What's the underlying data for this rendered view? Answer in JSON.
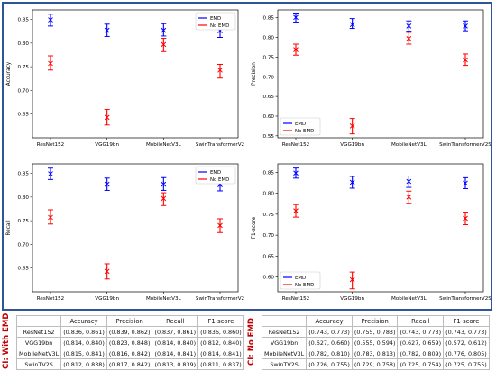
{
  "chart_data": [
    {
      "type": "scatter",
      "ylabel": "Accuracy",
      "categories": [
        "ResNet152",
        "VGG19bn",
        "MobileNetV3L",
        "SwinTransformerV2"
      ],
      "ylim": [
        0.6,
        0.87
      ],
      "yticks": [
        0.65,
        0.7,
        0.75,
        0.8,
        0.85
      ],
      "legend": "top-right",
      "series": [
        {
          "name": "EMD",
          "color": "#0000ff",
          "values": [
            0.849,
            0.827,
            0.827,
            0.826
          ],
          "lower": [
            0.836,
            0.814,
            0.815,
            0.812
          ],
          "upper": [
            0.861,
            0.84,
            0.841,
            0.838
          ]
        },
        {
          "name": "No EMD",
          "color": "#ff0000",
          "values": [
            0.757,
            0.643,
            0.797,
            0.743
          ],
          "lower": [
            0.743,
            0.627,
            0.782,
            0.726
          ],
          "upper": [
            0.773,
            0.66,
            0.81,
            0.755
          ]
        }
      ]
    },
    {
      "type": "scatter",
      "ylabel": "Precision",
      "categories": [
        "ResNet152",
        "VGG19bn",
        "MobileNetV3L",
        "SwinTransformerV2S"
      ],
      "ylim": [
        0.545,
        0.87
      ],
      "yticks": [
        0.55,
        0.6,
        0.65,
        0.7,
        0.75,
        0.8,
        0.85
      ],
      "legend": "bottom-left",
      "series": [
        {
          "name": "EMD",
          "color": "#0000ff",
          "values": [
            0.851,
            0.833,
            0.829,
            0.829
          ],
          "lower": [
            0.839,
            0.823,
            0.816,
            0.817
          ],
          "upper": [
            0.862,
            0.848,
            0.842,
            0.842
          ]
        },
        {
          "name": "No EMD",
          "color": "#ff0000",
          "values": [
            0.769,
            0.575,
            0.797,
            0.743
          ],
          "lower": [
            0.755,
            0.555,
            0.783,
            0.729
          ],
          "upper": [
            0.783,
            0.594,
            0.813,
            0.758
          ]
        }
      ]
    },
    {
      "type": "scatter",
      "ylabel": "Recall",
      "categories": [
        "ResNet152",
        "VGG19bn",
        "MobileNetV3L",
        "SwinTransformerV2"
      ],
      "ylim": [
        0.6,
        0.87
      ],
      "yticks": [
        0.65,
        0.7,
        0.75,
        0.8,
        0.85
      ],
      "legend": "top-right",
      "series": [
        {
          "name": "EMD",
          "color": "#0000ff",
          "values": [
            0.849,
            0.827,
            0.827,
            0.826
          ],
          "lower": [
            0.837,
            0.814,
            0.814,
            0.813
          ],
          "upper": [
            0.861,
            0.84,
            0.841,
            0.839
          ]
        },
        {
          "name": "No EMD",
          "color": "#ff0000",
          "values": [
            0.757,
            0.643,
            0.797,
            0.74
          ],
          "lower": [
            0.743,
            0.627,
            0.782,
            0.725
          ],
          "upper": [
            0.773,
            0.659,
            0.809,
            0.754
          ]
        }
      ]
    },
    {
      "type": "scatter",
      "ylabel": "F1-score",
      "categories": [
        "ResNet152",
        "VGG19bn",
        "MobileNetV3L",
        "SwinTransformerV2S"
      ],
      "ylim": [
        0.565,
        0.87
      ],
      "yticks": [
        0.6,
        0.65,
        0.7,
        0.75,
        0.8,
        0.85
      ],
      "legend": "bottom-left",
      "series": [
        {
          "name": "EMD",
          "color": "#0000ff",
          "values": [
            0.848,
            0.826,
            0.828,
            0.824
          ],
          "lower": [
            0.836,
            0.812,
            0.814,
            0.811
          ],
          "upper": [
            0.86,
            0.84,
            0.841,
            0.837
          ]
        },
        {
          "name": "No EMD",
          "color": "#ff0000",
          "values": [
            0.758,
            0.594,
            0.791,
            0.74
          ],
          "lower": [
            0.743,
            0.572,
            0.776,
            0.725
          ],
          "upper": [
            0.773,
            0.612,
            0.805,
            0.755
          ]
        }
      ]
    }
  ],
  "tables": {
    "emd": {
      "label": "CI: With EMD",
      "headers": [
        "",
        "Accuracy",
        "Precision",
        "Recall",
        "F1-score"
      ],
      "rows": [
        [
          "ResNet152",
          "(0.836, 0.861)",
          "(0.839, 0.862)",
          "(0.837, 0.861)",
          "(0.836, 0.860)"
        ],
        [
          "VGG19bn",
          "(0.814, 0.840)",
          "(0.823, 0.848)",
          "(0.814, 0.840)",
          "(0.812, 0.840)"
        ],
        [
          "MobileNetV3L",
          "(0.815, 0.841)",
          "(0.816, 0.842)",
          "(0.814, 0.841)",
          "(0.814, 0.841)"
        ],
        [
          "SwinTV2S",
          "(0.812, 0.838)",
          "(0.817, 0.842)",
          "(0.813, 0.839)",
          "(0.811, 0.837)"
        ]
      ]
    },
    "noemd": {
      "label": "CI: No EMD",
      "headers": [
        "",
        "Accuracy",
        "Precision",
        "Recall",
        "F1-score"
      ],
      "rows": [
        [
          "ResNet152",
          "(0.743, 0.773)",
          "(0.755, 0.783)",
          "(0.743, 0.773)",
          "(0.743, 0.773)"
        ],
        [
          "VGG19bn",
          "(0.627, 0.660)",
          "(0.555, 0.594)",
          "(0.627, 0.659)",
          "(0.572, 0.612)"
        ],
        [
          "MobileNetV3L",
          "(0.782, 0.810)",
          "(0.783, 0.813)",
          "(0.782, 0.809)",
          "(0.776, 0.805)"
        ],
        [
          "SwinTV2S",
          "(0.726, 0.755)",
          "(0.729, 0.758)",
          "(0.725, 0.754)",
          "(0.725, 0.755)"
        ]
      ]
    }
  }
}
